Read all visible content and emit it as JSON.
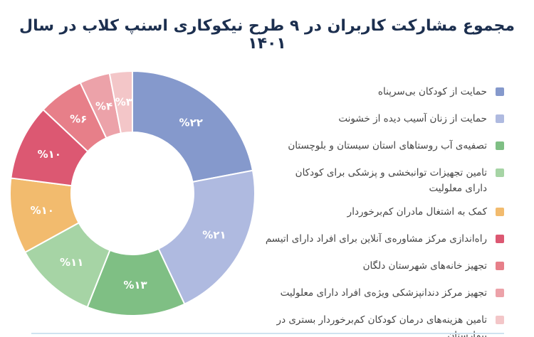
{
  "title": "مجموع مشارکت کاربران در ۹ طرح نیکوکاری اسنپ کلاب در سال ۱۴۰۱",
  "chart_data": {
    "type": "pie",
    "donut": true,
    "start": "12 o'clock",
    "direction": "clockwise",
    "slices": [
      {
        "label": "حمایت از کودکان بی‌سرپناه",
        "value": 22,
        "display": "%۲۲",
        "color": "#8599cc"
      },
      {
        "label": "حمایت از زنان آسیب دیده از خشونت",
        "value": 21,
        "display": "%۲۱",
        "color": "#afbae0"
      },
      {
        "label": "تصفیه‌ی آب روستاهای استان سیستان و بلوچستان",
        "value": 13,
        "display": "%۱۳",
        "color": "#7fbf84"
      },
      {
        "label": "تامین تجهیزات توانبخشی و پزشکی برای کودکان دارای معلولیت",
        "value": 11,
        "display": "%۱۱",
        "color": "#a6d4a5"
      },
      {
        "label": "کمک به اشتغال مادران کم‌برخوردار",
        "value": 10,
        "display": "%۱۰",
        "color": "#f2bb6e"
      },
      {
        "label": "راه‌اندازی مرکز مشاوره‌ی آنلاین برای افراد دارای اتیسم",
        "value": 10,
        "display": "%۱۰",
        "color": "#dc5872"
      },
      {
        "label": "تجهیز خانه‌های شهرستان دلگان",
        "value": 6,
        "display": "%۶",
        "color": "#e77f89"
      },
      {
        "label": "تجهیز مرکز دندانپزشکی ویژه‌ی افراد دارای معلولیت",
        "value": 4,
        "display": "%۴",
        "color": "#eca2a9"
      },
      {
        "label": "تامین هزینه‌های درمان کودکان کم‌برخوردار بستری در بیمارستان",
        "value": 3,
        "display": "%۳",
        "color": "#f3c6c8"
      }
    ]
  }
}
